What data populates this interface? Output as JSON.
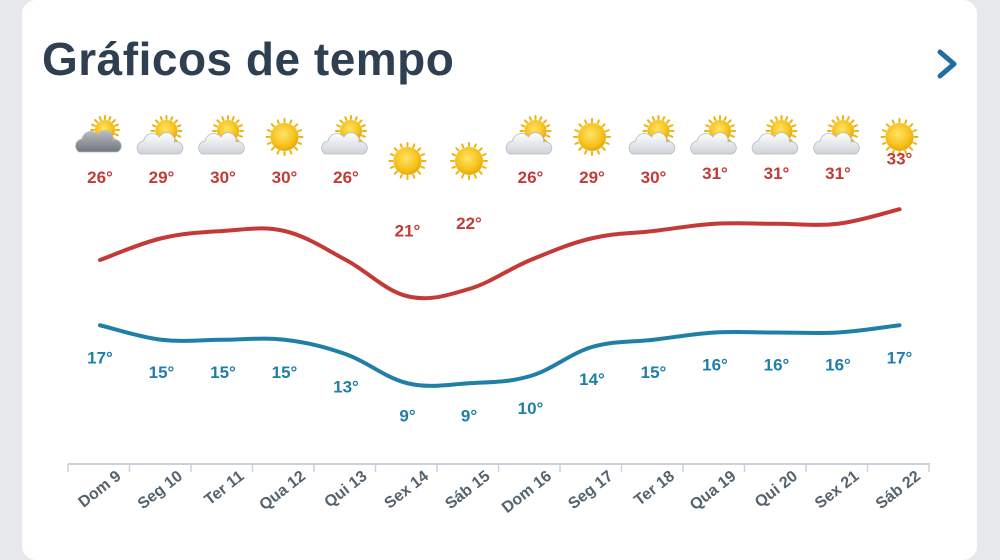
{
  "header": {
    "title": "Gráficos de tempo"
  },
  "colors": {
    "max_line": "#c33a36",
    "min_line": "#1f7fa6",
    "title": "#2f3f52",
    "axis": "#c9d2dc",
    "day_label": "#55636f"
  },
  "chart_data": {
    "type": "line",
    "categories": [
      "Dom 9",
      "Seg 10",
      "Ter 11",
      "Qua 12",
      "Qui 13",
      "Sex 14",
      "Sáb 15",
      "Dom 16",
      "Seg 17",
      "Ter 18",
      "Qua 19",
      "Qui 20",
      "Sex 21",
      "Sáb 22"
    ],
    "icons": [
      "cloudy-icon",
      "partly-cloudy-icon",
      "partly-cloudy-icon",
      "sun-icon",
      "partly-cloudy-icon",
      "sun-icon",
      "sun-icon",
      "partly-cloudy-icon",
      "sun-icon",
      "partly-cloudy-icon",
      "partly-cloudy-icon",
      "partly-cloudy-icon",
      "partly-cloudy-icon",
      "sun-icon"
    ],
    "series": [
      {
        "values": [
          26,
          29,
          30,
          30,
          26,
          21,
          22,
          26,
          29,
          30,
          31,
          31,
          31,
          33
        ],
        "labels": [
          "26°",
          "29°",
          "30°",
          "30°",
          "26°",
          "21°",
          "22°",
          "26°",
          "29°",
          "30°",
          "31°",
          "31°",
          "31°",
          "33°"
        ]
      },
      {
        "values": [
          17,
          15,
          15,
          15,
          13,
          9,
          9,
          10,
          14,
          15,
          16,
          16,
          16,
          17
        ],
        "labels": [
          "17°",
          "15°",
          "15°",
          "15°",
          "13°",
          "9°",
          "9°",
          "10°",
          "14°",
          "15°",
          "16°",
          "16°",
          "16°",
          "17°"
        ]
      }
    ]
  }
}
